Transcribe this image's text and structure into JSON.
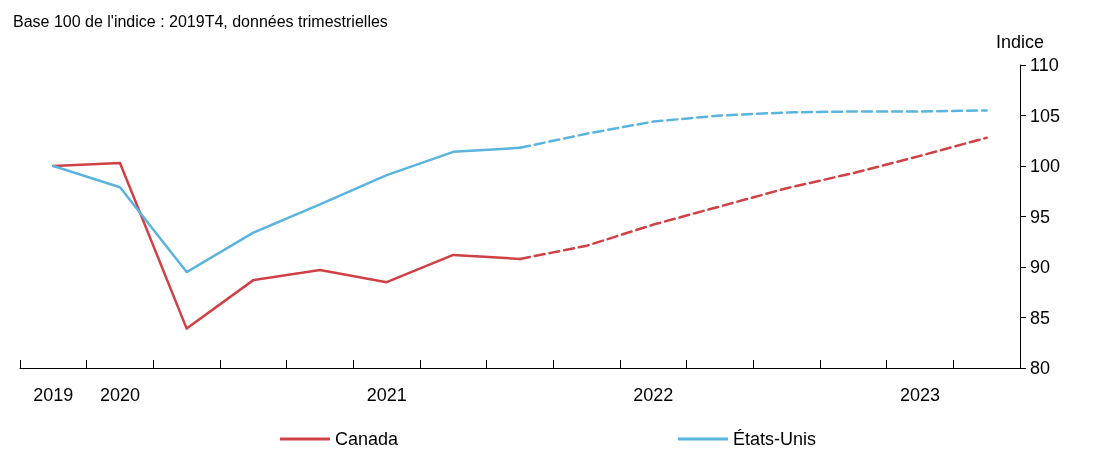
{
  "chart_data": {
    "type": "line",
    "title": "Base 100 de l'indice : 2019T4, données trimestrielles",
    "ylabel": "Indice",
    "categories": [
      "2019",
      "2020",
      null,
      null,
      null,
      "2021",
      null,
      null,
      null,
      "2022",
      null,
      null,
      null,
      "2023",
      null
    ],
    "series": [
      {
        "name": "Canada",
        "color": "#d04145",
        "line_style": "solid",
        "values": [
          100,
          100.3,
          83.9,
          88.7,
          89.7,
          88.5,
          91.2,
          90.8,
          null,
          null,
          null,
          null,
          null,
          null,
          null
        ]
      },
      {
        "color": "#d04145",
        "line_style": "dashed",
        "values": [
          null,
          null,
          null,
          null,
          null,
          null,
          null,
          90.8,
          92.1,
          94.2,
          96.0,
          97.8,
          99.3,
          101.0,
          102.8
        ]
      },
      {
        "name": "États-Unis",
        "color": "#5bb4de",
        "line_style": "solid",
        "values": [
          100,
          97.9,
          89.5,
          93.4,
          96.2,
          99.1,
          101.4,
          101.8,
          null,
          null,
          null,
          null,
          null,
          null,
          null
        ]
      },
      {
        "color": "#5bb4de",
        "line_style": "dashed",
        "values": [
          null,
          null,
          null,
          null,
          null,
          null,
          null,
          101.8,
          103.2,
          104.4,
          105.0,
          105.3,
          105.4,
          105.4,
          105.5
        ]
      }
    ],
    "ylim": [
      80,
      110
    ],
    "yticks": [
      80,
      85,
      90,
      95,
      100,
      105,
      110
    ],
    "grid": false,
    "legend": "bottom",
    "marker": "none"
  }
}
